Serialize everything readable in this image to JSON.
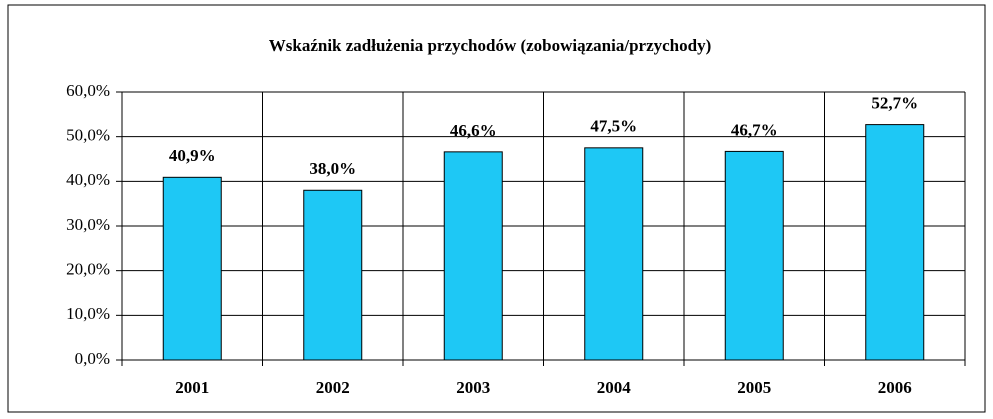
{
  "chart_data": {
    "type": "bar",
    "title": "Wskaźnik zadłużenia przychodów (zobowiązania/przychody)",
    "categories": [
      "2001",
      "2002",
      "2003",
      "2004",
      "2005",
      "2006"
    ],
    "values": [
      40.9,
      38.0,
      46.6,
      47.5,
      46.7,
      52.7
    ],
    "value_labels": [
      "40,9%",
      "38,0%",
      "46,6%",
      "47,5%",
      "46,7%",
      "52,7%"
    ],
    "color": "#1ec8f5",
    "ylim": [
      0,
      60
    ],
    "yticks": [
      {
        "value": 0,
        "label": "0,0%"
      },
      {
        "value": 10,
        "label": "10,0%"
      },
      {
        "value": 20,
        "label": "20,0%"
      },
      {
        "value": 30,
        "label": "30,0%"
      },
      {
        "value": 40,
        "label": "40,0%"
      },
      {
        "value": 50,
        "label": "50,0%"
      },
      {
        "value": 60,
        "label": "60,0%"
      }
    ],
    "grid": true
  }
}
